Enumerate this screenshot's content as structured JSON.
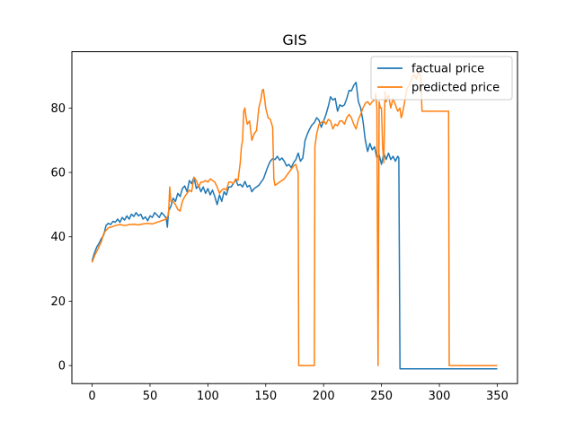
{
  "chart_data": {
    "type": "line",
    "title": "GIS",
    "xlabel": "",
    "ylabel": "",
    "xlim": [
      -17.5,
      367.5
    ],
    "ylim": [
      -5.6,
      97.5
    ],
    "xticks": [
      0,
      50,
      100,
      150,
      200,
      250,
      300,
      350
    ],
    "yticks": [
      0,
      20,
      40,
      60,
      80
    ],
    "grid": false,
    "legend_position": "top-right",
    "series": [
      {
        "name": "factual price",
        "color": "#1f77b4",
        "points": [
          [
            0,
            32.5
          ],
          [
            2,
            35
          ],
          [
            4,
            36.8
          ],
          [
            6,
            38
          ],
          [
            8,
            39.5
          ],
          [
            10,
            40.5
          ],
          [
            12,
            43.5
          ],
          [
            14,
            44.2
          ],
          [
            16,
            43.8
          ],
          [
            18,
            44.8
          ],
          [
            20,
            44.5
          ],
          [
            22,
            45.5
          ],
          [
            24,
            44.5
          ],
          [
            26,
            46
          ],
          [
            28,
            45.2
          ],
          [
            30,
            46.5
          ],
          [
            32,
            45.5
          ],
          [
            34,
            47
          ],
          [
            36,
            46.3
          ],
          [
            38,
            47.5
          ],
          [
            40,
            46.5
          ],
          [
            42,
            47
          ],
          [
            44,
            45.5
          ],
          [
            46,
            46.2
          ],
          [
            48,
            45
          ],
          [
            50,
            46.5
          ],
          [
            52,
            46
          ],
          [
            54,
            47.5
          ],
          [
            56,
            46.8
          ],
          [
            58,
            46
          ],
          [
            60,
            47.5
          ],
          [
            62,
            46.8
          ],
          [
            64,
            45.8
          ],
          [
            65,
            43
          ],
          [
            66,
            48
          ],
          [
            68,
            49.5
          ],
          [
            70,
            52
          ],
          [
            72,
            51
          ],
          [
            74,
            53.5
          ],
          [
            76,
            52.5
          ],
          [
            78,
            55
          ],
          [
            80,
            55.8
          ],
          [
            82,
            54
          ],
          [
            84,
            57.5
          ],
          [
            86,
            56.5
          ],
          [
            88,
            58.5
          ],
          [
            90,
            55
          ],
          [
            92,
            56
          ],
          [
            94,
            54
          ],
          [
            96,
            55.5
          ],
          [
            98,
            53.5
          ],
          [
            100,
            55
          ],
          [
            102,
            53
          ],
          [
            104,
            54.5
          ],
          [
            106,
            52.5
          ],
          [
            108,
            50
          ],
          [
            110,
            53
          ],
          [
            112,
            51
          ],
          [
            114,
            54
          ],
          [
            116,
            53
          ],
          [
            118,
            55.5
          ],
          [
            120,
            55.5
          ],
          [
            122,
            56.5
          ],
          [
            124,
            57.8
          ],
          [
            126,
            56
          ],
          [
            128,
            56.3
          ],
          [
            130,
            55.5
          ],
          [
            132,
            57.2
          ],
          [
            134,
            55.5
          ],
          [
            136,
            56
          ],
          [
            138,
            54
          ],
          [
            140,
            55
          ],
          [
            142,
            55.5
          ],
          [
            144,
            56
          ],
          [
            146,
            57
          ],
          [
            148,
            58
          ],
          [
            150,
            60
          ],
          [
            152,
            62
          ],
          [
            154,
            63.5
          ],
          [
            156,
            64.3
          ],
          [
            158,
            64
          ],
          [
            160,
            65
          ],
          [
            162,
            63.8
          ],
          [
            164,
            64.5
          ],
          [
            166,
            63.5
          ],
          [
            168,
            62
          ],
          [
            170,
            62.5
          ],
          [
            172,
            61.5
          ],
          [
            174,
            63
          ],
          [
            176,
            64
          ],
          [
            178,
            66
          ],
          [
            180,
            63.5
          ],
          [
            182,
            64.5
          ],
          [
            184,
            70
          ],
          [
            186,
            72
          ],
          [
            188,
            73.5
          ],
          [
            190,
            74.8
          ],
          [
            192,
            75.5
          ],
          [
            194,
            77
          ],
          [
            196,
            76.2
          ],
          [
            198,
            74
          ],
          [
            200,
            76
          ],
          [
            202,
            78
          ],
          [
            204,
            80.5
          ],
          [
            206,
            83.5
          ],
          [
            208,
            82.5
          ],
          [
            210,
            83
          ],
          [
            212,
            79
          ],
          [
            214,
            81
          ],
          [
            216,
            80.5
          ],
          [
            218,
            81
          ],
          [
            220,
            83
          ],
          [
            222,
            85.5
          ],
          [
            224,
            85.3
          ],
          [
            226,
            87
          ],
          [
            228,
            88
          ],
          [
            230,
            82
          ],
          [
            232,
            80
          ],
          [
            234,
            76
          ],
          [
            236,
            70
          ],
          [
            238,
            66.5
          ],
          [
            240,
            69
          ],
          [
            242,
            67
          ],
          [
            244,
            68
          ],
          [
            246,
            64.5
          ],
          [
            248,
            65.5
          ],
          [
            250,
            62.5
          ],
          [
            252,
            66
          ],
          [
            254,
            64
          ],
          [
            256,
            66
          ],
          [
            258,
            64
          ],
          [
            260,
            65
          ],
          [
            262,
            63.5
          ],
          [
            264,
            65
          ],
          [
            265,
            64.5
          ],
          [
            266,
            -1
          ],
          [
            290,
            -1
          ],
          [
            320,
            -1
          ],
          [
            350,
            -1
          ]
        ]
      },
      {
        "name": "predicted price",
        "color": "#ff7f0e",
        "points": [
          [
            0,
            32
          ],
          [
            2,
            34
          ],
          [
            4,
            35.5
          ],
          [
            6,
            37
          ],
          [
            8,
            38.5
          ],
          [
            10,
            41
          ],
          [
            12,
            42
          ],
          [
            14,
            42.8
          ],
          [
            16,
            43
          ],
          [
            18,
            43.2
          ],
          [
            20,
            43.5
          ],
          [
            24,
            43.8
          ],
          [
            28,
            43.5
          ],
          [
            32,
            43.8
          ],
          [
            36,
            43.9
          ],
          [
            40,
            43.7
          ],
          [
            44,
            44
          ],
          [
            48,
            44.2
          ],
          [
            52,
            44
          ],
          [
            56,
            44.5
          ],
          [
            60,
            45
          ],
          [
            64,
            45.5
          ],
          [
            66,
            47
          ],
          [
            67,
            55.5
          ],
          [
            68,
            51
          ],
          [
            70,
            51
          ],
          [
            72,
            50
          ],
          [
            74,
            48.5
          ],
          [
            76,
            48
          ],
          [
            78,
            51
          ],
          [
            80,
            52.5
          ],
          [
            82,
            53.5
          ],
          [
            84,
            54.5
          ],
          [
            86,
            54
          ],
          [
            88,
            58.5
          ],
          [
            90,
            57.5
          ],
          [
            92,
            55.5
          ],
          [
            94,
            57
          ],
          [
            96,
            57
          ],
          [
            98,
            57.5
          ],
          [
            100,
            57
          ],
          [
            102,
            58
          ],
          [
            104,
            57.5
          ],
          [
            106,
            57
          ],
          [
            108,
            55.5
          ],
          [
            110,
            53.5
          ],
          [
            112,
            54.5
          ],
          [
            114,
            55
          ],
          [
            116,
            54.5
          ],
          [
            118,
            57
          ],
          [
            120,
            57
          ],
          [
            122,
            56.5
          ],
          [
            124,
            58
          ],
          [
            126,
            57.5
          ],
          [
            128,
            63
          ],
          [
            129,
            68
          ],
          [
            130,
            70
          ],
          [
            131,
            79
          ],
          [
            132,
            80
          ],
          [
            133,
            77
          ],
          [
            134,
            75
          ],
          [
            136,
            76
          ],
          [
            138,
            70
          ],
          [
            140,
            72
          ],
          [
            142,
            73
          ],
          [
            144,
            80
          ],
          [
            146,
            83
          ],
          [
            147,
            85.5
          ],
          [
            148,
            85.8
          ],
          [
            150,
            80
          ],
          [
            152,
            77
          ],
          [
            154,
            76.5
          ],
          [
            156,
            74
          ],
          [
            157,
            58
          ],
          [
            158,
            56
          ],
          [
            160,
            56.5
          ],
          [
            162,
            57
          ],
          [
            164,
            57.5
          ],
          [
            166,
            58
          ],
          [
            168,
            59
          ],
          [
            170,
            60
          ],
          [
            172,
            61
          ],
          [
            174,
            62
          ],
          [
            176,
            62.5
          ],
          [
            177,
            61
          ],
          [
            178,
            60
          ],
          [
            178.5,
            0
          ],
          [
            192,
            0
          ],
          [
            192.5,
            68
          ],
          [
            194,
            72
          ],
          [
            196,
            75
          ],
          [
            198,
            75.5
          ],
          [
            200,
            76
          ],
          [
            202,
            75
          ],
          [
            204,
            76.5
          ],
          [
            206,
            76
          ],
          [
            208,
            73.5
          ],
          [
            210,
            75
          ],
          [
            212,
            74.5
          ],
          [
            214,
            76
          ],
          [
            216,
            76
          ],
          [
            218,
            75
          ],
          [
            220,
            77
          ],
          [
            222,
            78
          ],
          [
            224,
            77
          ],
          [
            226,
            75
          ],
          [
            228,
            73.5
          ],
          [
            230,
            76.5
          ],
          [
            232,
            78
          ],
          [
            234,
            80
          ],
          [
            236,
            81.5
          ],
          [
            238,
            82
          ],
          [
            240,
            81
          ],
          [
            242,
            82
          ],
          [
            244,
            82.5
          ],
          [
            245,
            84.5
          ],
          [
            246,
            80
          ],
          [
            247,
            0
          ],
          [
            248,
            82
          ],
          [
            249,
            80
          ],
          [
            250,
            80
          ],
          [
            251,
            68
          ],
          [
            252,
            63
          ],
          [
            253,
            85
          ],
          [
            254,
            82
          ],
          [
            256,
            84
          ],
          [
            258,
            80
          ],
          [
            260,
            83
          ],
          [
            262,
            81
          ],
          [
            264,
            79
          ],
          [
            266,
            80
          ],
          [
            267,
            77
          ],
          [
            268,
            78
          ],
          [
            270,
            82
          ],
          [
            272,
            86
          ],
          [
            274,
            87
          ],
          [
            276,
            89
          ],
          [
            278,
            90.5
          ],
          [
            280,
            89
          ],
          [
            282,
            91
          ],
          [
            284,
            90
          ],
          [
            285,
            79
          ],
          [
            308,
            79
          ],
          [
            308.5,
            0
          ],
          [
            350,
            0
          ]
        ]
      }
    ]
  }
}
